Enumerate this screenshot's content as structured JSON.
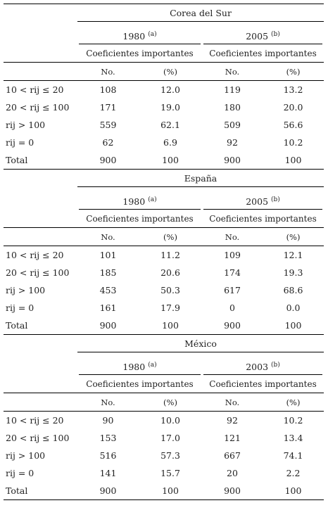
{
  "blocks": [
    {
      "country": "Corea del Sur",
      "columns": [
        {
          "year": "1980",
          "note": "(a)",
          "subheader": "Coeficientes importantes",
          "headers": [
            "No.",
            "(%)"
          ]
        },
        {
          "year": "2005",
          "note": "(b)",
          "subheader": "Coeficientes importantes",
          "headers": [
            "No.",
            "(%)"
          ]
        }
      ],
      "rows": [
        {
          "label": "10 < rij ≤ 20",
          "values": [
            "108",
            "12.0",
            "119",
            "13.2"
          ]
        },
        {
          "label": "20 < rij ≤ 100",
          "values": [
            "171",
            "19.0",
            "180",
            "20.0"
          ]
        },
        {
          "label": "rij > 100",
          "values": [
            "559",
            "62.1",
            "509",
            "56.6"
          ]
        },
        {
          "label": "rij = 0",
          "values": [
            "62",
            "6.9",
            "92",
            "10.2"
          ]
        },
        {
          "label": "Total",
          "values": [
            "900",
            "100",
            "900",
            "100"
          ]
        }
      ]
    },
    {
      "country": "España",
      "columns": [
        {
          "year": "1980",
          "note": "(a)",
          "subheader": "Coeficientes importantes",
          "headers": [
            "No.",
            "(%)"
          ]
        },
        {
          "year": "2005",
          "note": "(b)",
          "subheader": "Coeficientes importantes",
          "headers": [
            "No.",
            "(%)"
          ]
        }
      ],
      "rows": [
        {
          "label": "10 < rij ≤ 20",
          "values": [
            "101",
            "11.2",
            "109",
            "12.1"
          ]
        },
        {
          "label": "20 < rij ≤ 100",
          "values": [
            "185",
            "20.6",
            "174",
            "19.3"
          ]
        },
        {
          "label": "rij > 100",
          "values": [
            "453",
            "50.3",
            "617",
            "68.6"
          ]
        },
        {
          "label": "rij = 0",
          "values": [
            "161",
            "17.9",
            "0",
            "0.0"
          ]
        },
        {
          "label": "Total",
          "values": [
            "900",
            "100",
            "900",
            "100"
          ]
        }
      ]
    },
    {
      "country": "México",
      "columns": [
        {
          "year": "1980",
          "note": "(a)",
          "subheader": "Coeficientes importantes",
          "headers": [
            "No.",
            "(%)"
          ]
        },
        {
          "year": "2003",
          "note": "(b)",
          "subheader": "Coeficientes importantes",
          "headers": [
            "No.",
            "(%)"
          ]
        }
      ],
      "rows": [
        {
          "label": "10 < rij ≤ 20",
          "values": [
            "90",
            "10.0",
            "92",
            "10.2"
          ]
        },
        {
          "label": "20 < rij ≤ 100",
          "values": [
            "153",
            "17.0",
            "121",
            "13.4"
          ]
        },
        {
          "label": "rij > 100",
          "values": [
            "516",
            "57.3",
            "667",
            "74.1"
          ]
        },
        {
          "label": "rij = 0",
          "values": [
            "141",
            "15.7",
            "20",
            "2.2"
          ]
        },
        {
          "label": "Total",
          "values": [
            "900",
            "100",
            "900",
            "100"
          ]
        }
      ]
    }
  ]
}
